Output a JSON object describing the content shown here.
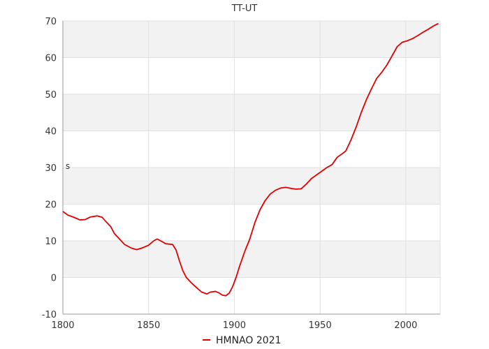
{
  "chart_data": {
    "type": "line",
    "title": "TT-UT",
    "ylabel": "s",
    "xlim": [
      1800,
      2020
    ],
    "ylim": [
      -10,
      70
    ],
    "x_ticks": [
      1800,
      1850,
      1900,
      1950,
      2000
    ],
    "y_ticks": [
      -10,
      0,
      10,
      20,
      30,
      40,
      50,
      60,
      70
    ],
    "grid": true,
    "band_color": "#f2f2f2",
    "grid_color": "#e0e0e0",
    "legend_position": "bottom",
    "series": [
      {
        "name": "HMNAO 2021",
        "color": "#e00000",
        "points": [
          [
            1800,
            18
          ],
          [
            1803,
            17
          ],
          [
            1806,
            16.5
          ],
          [
            1810,
            15.7
          ],
          [
            1813,
            15.8
          ],
          [
            1816,
            16.5
          ],
          [
            1820,
            16.8
          ],
          [
            1823,
            16.4
          ],
          [
            1825,
            15.3
          ],
          [
            1828,
            13.8
          ],
          [
            1830,
            12.0
          ],
          [
            1833,
            10.5
          ],
          [
            1836,
            9.0
          ],
          [
            1840,
            8.0
          ],
          [
            1843,
            7.6
          ],
          [
            1846,
            8.0
          ],
          [
            1850,
            8.8
          ],
          [
            1853,
            10.0
          ],
          [
            1855,
            10.5
          ],
          [
            1857,
            10.0
          ],
          [
            1860,
            9.2
          ],
          [
            1864,
            9.0
          ],
          [
            1866,
            7.5
          ],
          [
            1868,
            4.5
          ],
          [
            1870,
            1.8
          ],
          [
            1872,
            0.0
          ],
          [
            1875,
            -1.5
          ],
          [
            1878,
            -2.8
          ],
          [
            1881,
            -4.0
          ],
          [
            1884,
            -4.5
          ],
          [
            1886,
            -4.0
          ],
          [
            1889,
            -3.8
          ],
          [
            1891,
            -4.2
          ],
          [
            1893,
            -4.8
          ],
          [
            1895,
            -5.0
          ],
          [
            1897,
            -4.3
          ],
          [
            1899,
            -2.5
          ],
          [
            1901,
            0.0
          ],
          [
            1903,
            3.0
          ],
          [
            1906,
            7.0
          ],
          [
            1909,
            10.5
          ],
          [
            1912,
            15.0
          ],
          [
            1915,
            18.5
          ],
          [
            1918,
            21.0
          ],
          [
            1921,
            22.8
          ],
          [
            1924,
            23.8
          ],
          [
            1927,
            24.4
          ],
          [
            1930,
            24.6
          ],
          [
            1933,
            24.3
          ],
          [
            1936,
            24.1
          ],
          [
            1939,
            24.2
          ],
          [
            1942,
            25.5
          ],
          [
            1945,
            27.0
          ],
          [
            1948,
            28.0
          ],
          [
            1951,
            29.0
          ],
          [
            1954,
            30.0
          ],
          [
            1957,
            30.8
          ],
          [
            1960,
            32.8
          ],
          [
            1963,
            33.8
          ],
          [
            1965,
            34.5
          ],
          [
            1968,
            37.5
          ],
          [
            1971,
            41.0
          ],
          [
            1974,
            45.0
          ],
          [
            1977,
            48.5
          ],
          [
            1980,
            51.5
          ],
          [
            1983,
            54.3
          ],
          [
            1986,
            56.0
          ],
          [
            1989,
            58.0
          ],
          [
            1992,
            60.5
          ],
          [
            1995,
            63.0
          ],
          [
            1998,
            64.2
          ],
          [
            2001,
            64.6
          ],
          [
            2004,
            65.2
          ],
          [
            2007,
            66.0
          ],
          [
            2010,
            66.9
          ],
          [
            2013,
            67.7
          ],
          [
            2016,
            68.6
          ],
          [
            2019,
            69.3
          ]
        ]
      }
    ]
  }
}
